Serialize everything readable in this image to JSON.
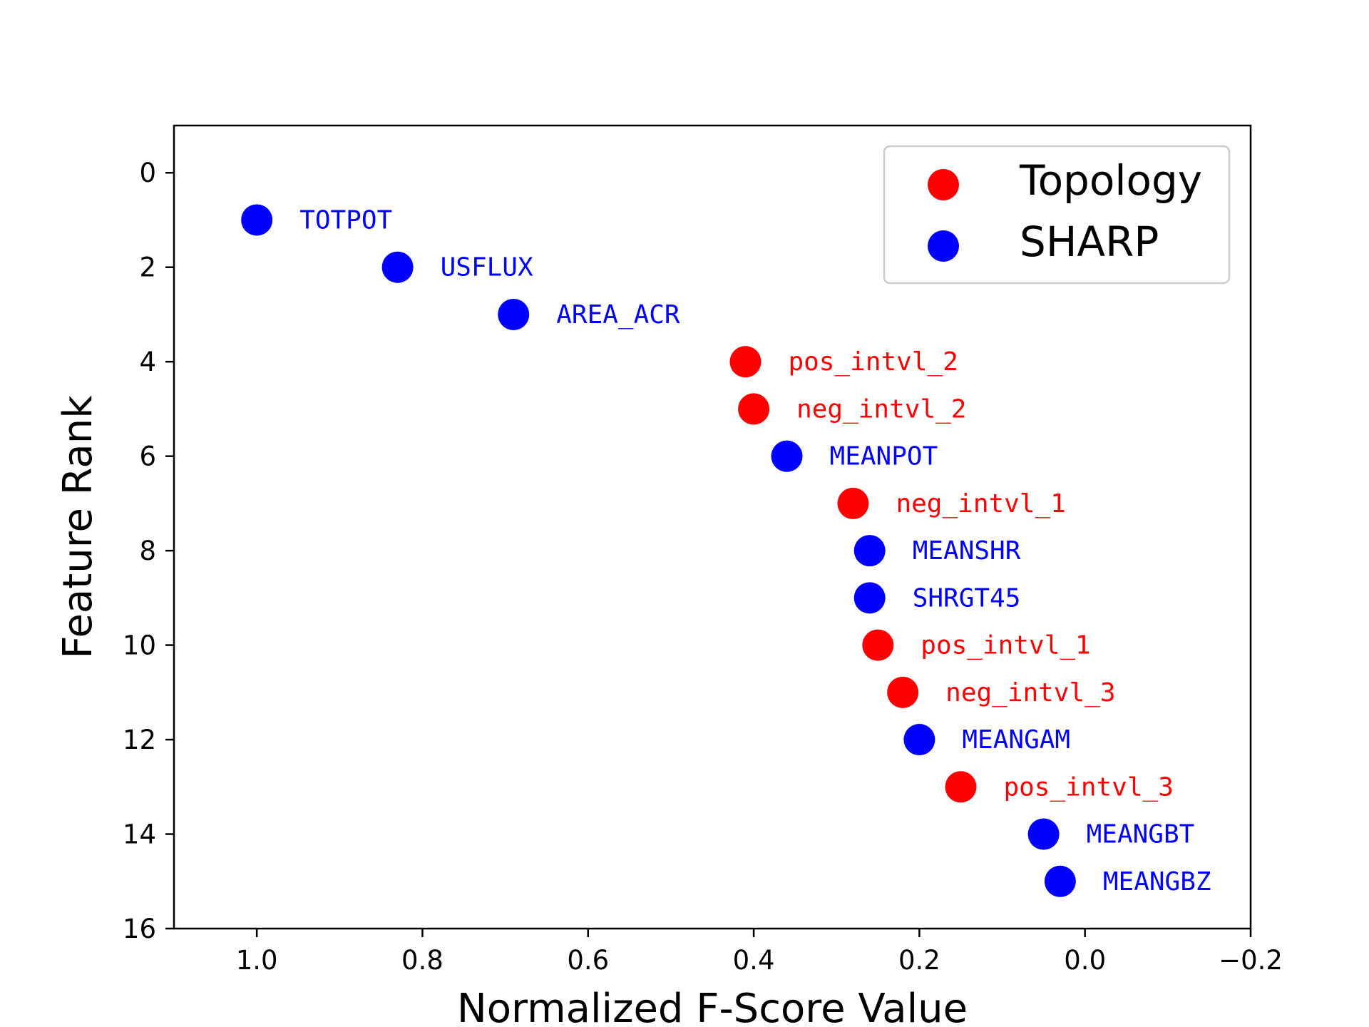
{
  "chart_data": {
    "type": "scatter",
    "title": "",
    "xlabel": "Normalized F-Score Value",
    "ylabel": "Feature Rank",
    "xlim": [
      1.1,
      -0.2
    ],
    "ylim": [
      16,
      -1
    ],
    "x_inverted": true,
    "y_inverted": true,
    "xticks": [
      "1.0",
      "0.8",
      "0.6",
      "0.4",
      "0.2",
      "0.0",
      "−0.2"
    ],
    "xtick_values": [
      1.0,
      0.8,
      0.6,
      0.4,
      0.2,
      0.0,
      -0.2
    ],
    "yticks": [
      "0",
      "2",
      "4",
      "6",
      "8",
      "10",
      "12",
      "14",
      "16"
    ],
    "ytick_values": [
      0,
      2,
      4,
      6,
      8,
      10,
      12,
      14,
      16
    ],
    "grid": false,
    "legend_position": "top-right",
    "series": [
      {
        "name": "Topology",
        "color": "#ff0000",
        "points": [
          {
            "label": "pos_intvl_2",
            "x": 0.41,
            "y": 4
          },
          {
            "label": "neg_intvl_2",
            "x": 0.4,
            "y": 5
          },
          {
            "label": "neg_intvl_1",
            "x": 0.28,
            "y": 7
          },
          {
            "label": "pos_intvl_1",
            "x": 0.25,
            "y": 10
          },
          {
            "label": "neg_intvl_3",
            "x": 0.22,
            "y": 11
          },
          {
            "label": "pos_intvl_3",
            "x": 0.15,
            "y": 13
          }
        ]
      },
      {
        "name": "SHARP",
        "color": "#0000ff",
        "points": [
          {
            "label": "TOTPOT",
            "x": 1.0,
            "y": 1
          },
          {
            "label": "USFLUX",
            "x": 0.83,
            "y": 2
          },
          {
            "label": "AREA_ACR",
            "x": 0.69,
            "y": 3
          },
          {
            "label": "MEANPOT",
            "x": 0.36,
            "y": 6
          },
          {
            "label": "MEANSHR",
            "x": 0.26,
            "y": 8
          },
          {
            "label": "SHRGT45",
            "x": 0.26,
            "y": 9
          },
          {
            "label": "MEANGAM",
            "x": 0.2,
            "y": 12
          },
          {
            "label": "MEANGBT",
            "x": 0.05,
            "y": 14
          },
          {
            "label": "MEANGBZ",
            "x": 0.03,
            "y": 15
          }
        ]
      }
    ]
  }
}
